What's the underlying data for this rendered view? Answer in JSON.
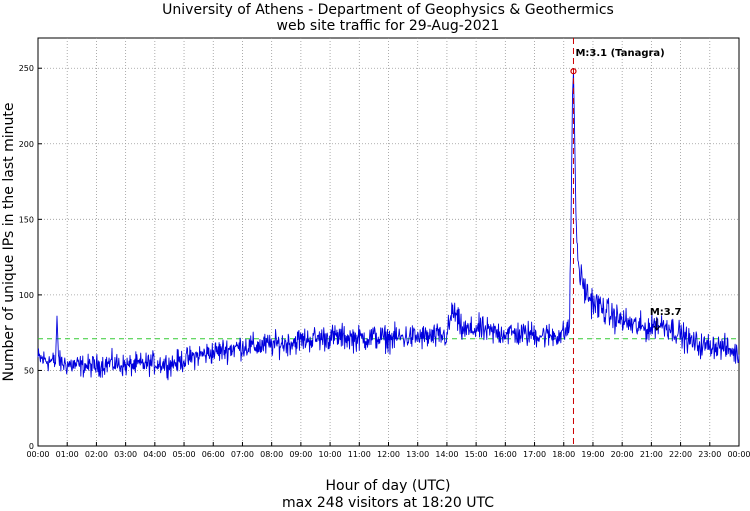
{
  "chart_data": {
    "type": "line",
    "title": [
      "University of Athens - Department of Geophysics & Geothermics",
      "web site traffic for 29-Aug-2021"
    ],
    "xlabel": "Hour of day (UTC)",
    "ylabel": "Number of unique IPs in the last minute",
    "footnote": "max 248 visitors at 18:20 UTC",
    "xlim": [
      0,
      24
    ],
    "ylim": [
      0,
      270
    ],
    "grid": true,
    "x_ticks": [
      "00:00",
      "01:00",
      "02:00",
      "03:00",
      "04:00",
      "05:00",
      "06:00",
      "07:00",
      "08:00",
      "09:00",
      "10:00",
      "11:00",
      "12:00",
      "13:00",
      "14:00",
      "15:00",
      "16:00",
      "17:00",
      "18:00",
      "19:00",
      "20:00",
      "21:00",
      "22:00",
      "23:00",
      "00:00"
    ],
    "y_ticks": [
      0,
      50,
      100,
      150,
      200,
      250
    ],
    "reference_line": {
      "y": 71,
      "color": "#33cc33",
      "style": "dashed"
    },
    "event_line": {
      "x": 18.333,
      "color": "#cc0000",
      "style": "dashed"
    },
    "max_marker": {
      "x": 18.333,
      "y": 248,
      "color": "#cc0000"
    },
    "annotations": [
      {
        "text": "M:3.1 (Tanagra)",
        "x": 18.333,
        "y": 248
      },
      {
        "text": "M:3.7",
        "x": 21.05,
        "y": 90
      }
    ],
    "series": [
      {
        "color": "#0000dd",
        "x": [
          0,
          0.25,
          0.5,
          0.6,
          0.65,
          0.7,
          0.75,
          1,
          1.5,
          2,
          2.5,
          3,
          3.5,
          4,
          4.5,
          5,
          5.5,
          6,
          6.5,
          7,
          7.5,
          8,
          8.5,
          9,
          9.5,
          10,
          10.5,
          11,
          11.5,
          12,
          12.5,
          13,
          13.5,
          14,
          14.2,
          14.5,
          14.8,
          15,
          15.5,
          16,
          16.5,
          17,
          17.5,
          18,
          18.2,
          18.25,
          18.3,
          18.333,
          18.37,
          18.42,
          18.5,
          18.6,
          18.7,
          18.8,
          18.9,
          19,
          19.25,
          19.5,
          19.75,
          20,
          20.25,
          20.5,
          20.75,
          21,
          21.15,
          21.3,
          21.5,
          21.75,
          22,
          22.25,
          22.5,
          22.75,
          23,
          23.25,
          23.5,
          23.75,
          24
        ],
        "y": [
          58,
          57,
          56,
          55,
          86,
          60,
          55,
          54,
          53,
          53,
          55,
          53,
          54,
          55,
          54,
          57,
          60,
          62,
          64,
          66,
          66,
          67,
          68,
          70,
          71,
          72,
          72,
          71,
          72,
          71,
          72,
          72,
          72,
          73,
          90,
          77,
          76,
          78,
          75,
          75,
          74,
          74,
          73,
          74,
          80,
          150,
          232,
          248,
          210,
          150,
          120,
          110,
          105,
          100,
          98,
          95,
          92,
          88,
          85,
          83,
          81,
          79,
          78,
          78,
          82,
          80,
          80,
          77,
          74,
          70,
          68,
          66,
          67,
          66,
          65,
          63,
          60
        ]
      }
    ]
  }
}
